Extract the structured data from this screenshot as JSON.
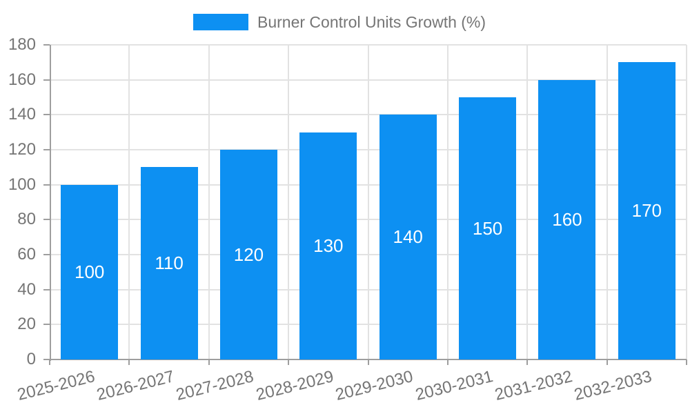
{
  "chart_data": {
    "type": "bar",
    "title": "Burner Control Units Growth (%)",
    "legend_position": "top-center",
    "categories": [
      "2025-2026",
      "2026-2027",
      "2027-2028",
      "2028-2029",
      "2029-2030",
      "2030-2031",
      "2031-2032",
      "2032-2033"
    ],
    "series": [
      {
        "name": "Burner Control Units Growth (%)",
        "values": [
          100,
          110,
          120,
          130,
          140,
          150,
          160,
          170
        ],
        "color": "#0d90f2"
      }
    ],
    "data_labels": {
      "visible": true,
      "position": "center",
      "color": "#ffffff"
    },
    "xlabel": "",
    "ylabel": "",
    "ylim": [
      0,
      180
    ],
    "y_ticks": [
      0,
      20,
      40,
      60,
      80,
      100,
      120,
      140,
      160,
      180
    ],
    "x_tick_rotation_deg": -14,
    "grid": {
      "horizontal": true,
      "vertical": true,
      "color": "#e2e2e2"
    },
    "axis": {
      "line_color": "#9e9e9e",
      "tick_color": "#9e9e9e",
      "label_color": "#757575"
    },
    "background": "#ffffff"
  }
}
